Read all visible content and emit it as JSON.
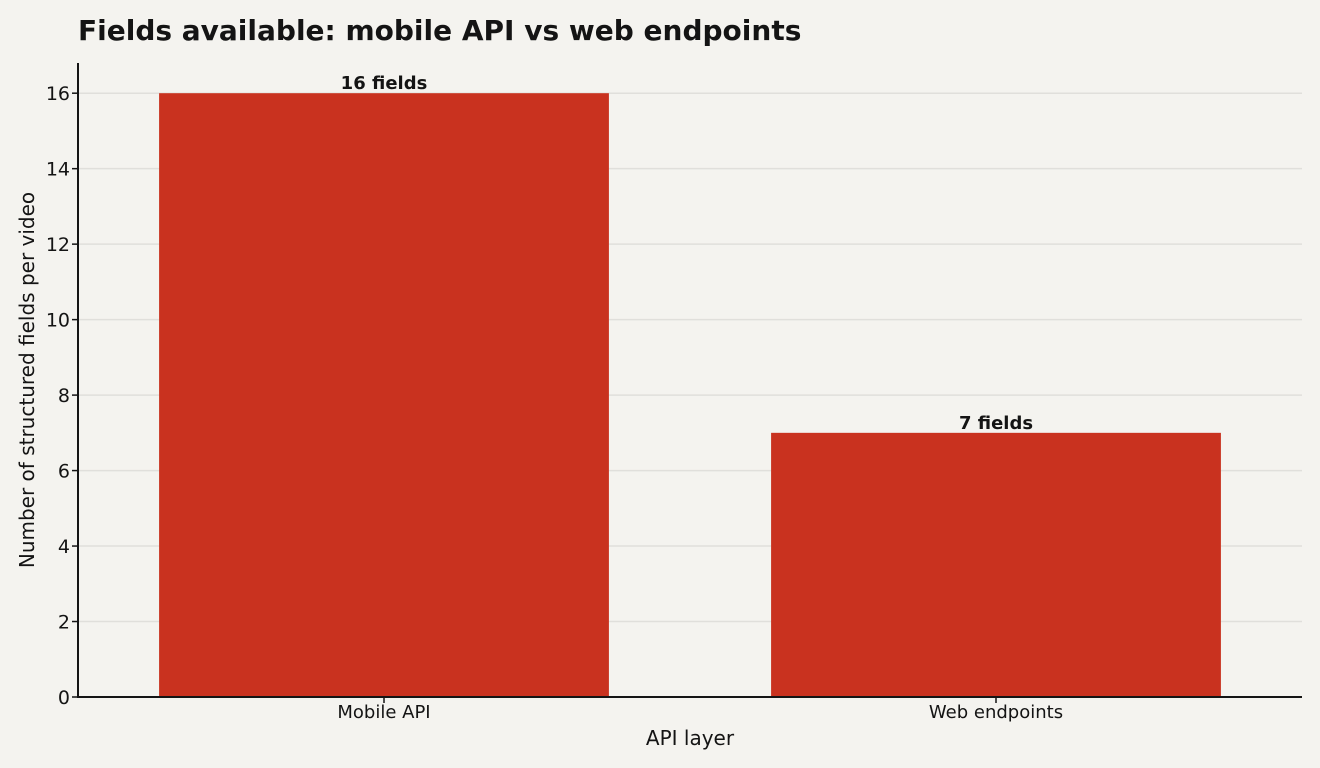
{
  "chart_data": {
    "type": "bar",
    "title": "Fields available: mobile API vs web endpoints",
    "xlabel": "API layer",
    "ylabel": "Number of structured fields per video",
    "categories": [
      "Mobile API",
      "Web endpoints"
    ],
    "values": [
      16,
      7
    ],
    "data_labels": [
      "16 fields",
      "7 fields"
    ],
    "yticks": [
      0,
      2,
      4,
      6,
      8,
      10,
      12,
      14,
      16
    ],
    "ylim": [
      0,
      16.8
    ],
    "grid": true,
    "legend": "none",
    "bar_color": "#c9321f",
    "background_color": "#f4f3ef"
  }
}
